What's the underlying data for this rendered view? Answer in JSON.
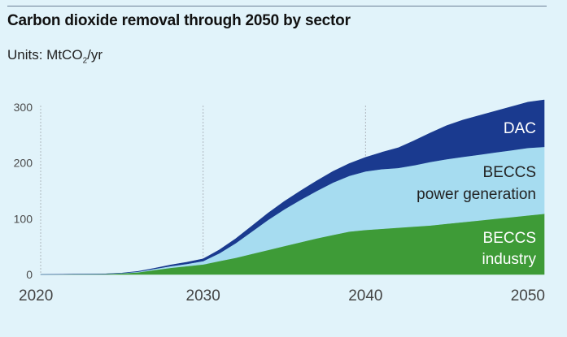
{
  "chart_data": {
    "type": "area",
    "stacked": true,
    "title": "Carbon dioxide removal through 2050 by sector",
    "units_prefix": "Units: MtCO",
    "units_sub": "2",
    "units_suffix": "/yr",
    "xlabel": "",
    "ylabel": "",
    "xlim": [
      2020,
      2051
    ],
    "ylim": [
      0,
      300
    ],
    "grid": "vertical dashed at decade ticks",
    "x_ticks": [
      "2020",
      "2030",
      "2040",
      "2050"
    ],
    "y_ticks": [
      "0",
      "100",
      "200",
      "300"
    ],
    "x": [
      2020,
      2022,
      2024,
      2025,
      2026,
      2027,
      2028,
      2029,
      2030,
      2031,
      2032,
      2033,
      2034,
      2035,
      2036,
      2037,
      2038,
      2039,
      2040,
      2041,
      2042,
      2043,
      2044,
      2045,
      2046,
      2047,
      2048,
      2049,
      2050,
      2051
    ],
    "series": [
      {
        "name": "BECCS industry",
        "label_lines": [
          "BECCS",
          "industry"
        ],
        "color": "#3e9b37",
        "label_color": "#ffffff",
        "values": [
          0,
          0.5,
          1,
          2,
          4,
          8,
          12,
          15,
          18,
          24,
          30,
          37,
          44,
          51,
          58,
          65,
          71,
          77,
          80,
          82,
          84,
          86,
          88,
          91,
          94,
          97,
          100,
          103,
          106,
          109
        ]
      },
      {
        "name": "BECCS power generation",
        "label_lines": [
          "BECCS",
          "power generation"
        ],
        "color": "#a6dcf0",
        "label_color": "#222222",
        "values": [
          0,
          0,
          0,
          0.5,
          1,
          2,
          3,
          4,
          6,
          14,
          26,
          40,
          54,
          66,
          76,
          85,
          94,
          100,
          105,
          107,
          107,
          110,
          114,
          116,
          117,
          118,
          119,
          120,
          121,
          120
        ]
      },
      {
        "name": "DAC",
        "label_lines": [
          "DAC"
        ],
        "color": "#1a3a8f",
        "label_color": "#ffffff",
        "values": [
          0,
          0,
          0,
          0,
          0.5,
          1,
          2,
          3,
          4,
          6,
          8,
          10,
          12,
          14,
          16,
          18,
          20,
          22,
          25,
          30,
          36,
          44,
          52,
          60,
          66,
          70,
          74,
          78,
          82,
          84
        ]
      }
    ]
  }
}
